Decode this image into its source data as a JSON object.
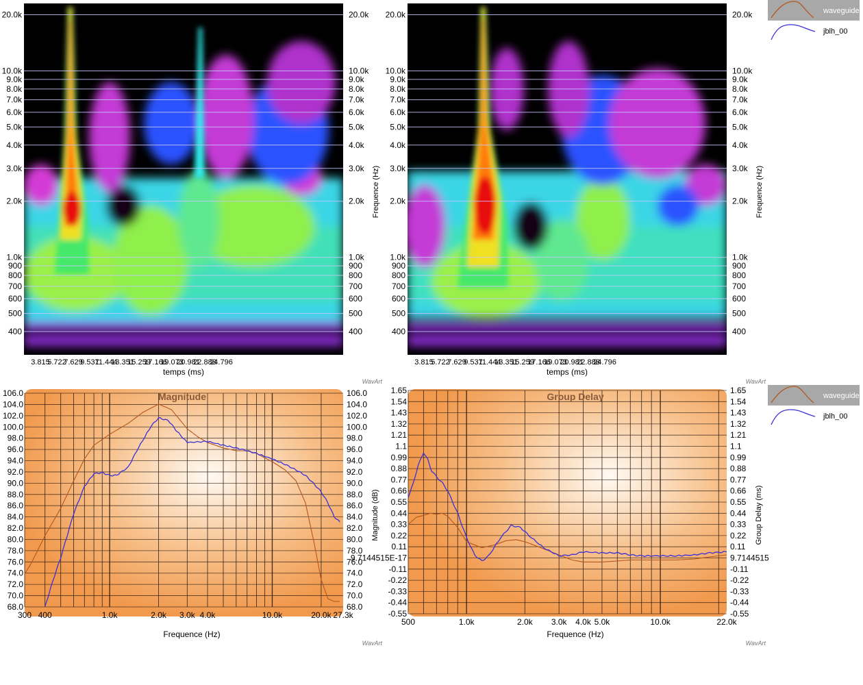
{
  "legend": {
    "items": [
      {
        "name": "waveguide",
        "color": "#b4561e"
      },
      {
        "name": "jblh_00",
        "color": "#3a2fd8"
      }
    ]
  },
  "watermark": "WavArt",
  "wavelet": {
    "freq_ticks": [
      {
        "f": 20000,
        "label": "20.0k"
      },
      {
        "f": 10000,
        "label": "10.0k"
      },
      {
        "f": 9000,
        "label": "9.0k"
      },
      {
        "f": 8000,
        "label": "8.0k"
      },
      {
        "f": 7000,
        "label": "7.0k"
      },
      {
        "f": 6000,
        "label": "6.0k"
      },
      {
        "f": 5000,
        "label": "5.0k"
      },
      {
        "f": 4000,
        "label": "4.0k"
      },
      {
        "f": 3000,
        "label": "3.0k"
      },
      {
        "f": 2000,
        "label": "2.0k"
      },
      {
        "f": 1000,
        "label": "1.0k"
      },
      {
        "f": 900,
        "label": "900"
      },
      {
        "f": 800,
        "label": "800"
      },
      {
        "f": 700,
        "label": "700"
      },
      {
        "f": 600,
        "label": "600"
      },
      {
        "f": 500,
        "label": "500"
      },
      {
        "f": 400,
        "label": "400"
      }
    ],
    "time_ticks": [
      "3.815",
      "5.722",
      "7.629",
      "9.537",
      "11.444",
      "13.351",
      "15.259",
      "17.166",
      "19.073",
      "20.981",
      "22.888",
      "24.796"
    ],
    "xlabel": "temps (ms)",
    "ylabel": "Frequence (Hz)",
    "peaks_ms": [
      5.9,
      9.0
    ]
  },
  "chart_data": [
    {
      "type": "line",
      "title": "Magnitude",
      "xlabel": "Frequence (Hz)",
      "ylabel": "Magnitude (dB)",
      "xscale": "log",
      "xlim": [
        300,
        27300
      ],
      "ylim": [
        67,
        106
      ],
      "x_ticks": [
        {
          "v": 300,
          "label": "300"
        },
        {
          "v": 400,
          "label": "400"
        },
        {
          "v": 1000,
          "label": "1.0k"
        },
        {
          "v": 2000,
          "label": "2.0k"
        },
        {
          "v": 3000,
          "label": "3.0k"
        },
        {
          "v": 4000,
          "label": "4.0k"
        },
        {
          "v": 10000,
          "label": "10.0k"
        },
        {
          "v": 20000,
          "label": "20.0k"
        },
        {
          "v": 27300,
          "label": "27.3k"
        }
      ],
      "y_ticks": [
        "106.0",
        "104.0",
        "102.0",
        "100.0",
        "98.0",
        "96.0",
        "94.0",
        "92.0",
        "90.0",
        "88.0",
        "86.0",
        "84.0",
        "82.0",
        "80.0",
        "78.0",
        "76.0",
        "74.0",
        "72.0",
        "70.0",
        "68.0"
      ],
      "series": [
        {
          "name": "waveguide",
          "x": [
            300,
            330,
            400,
            500,
            600,
            700,
            800,
            1000,
            1300,
            1600,
            2000,
            2400,
            3000,
            3500,
            4000,
            5000,
            6000,
            7000,
            8000,
            10000,
            12000,
            14000,
            16000,
            18000,
            20000,
            22000,
            24000,
            26000
          ],
          "y": [
            73,
            75,
            80,
            85,
            90,
            94,
            96.5,
            98.5,
            100.5,
            102.5,
            104,
            103,
            99.5,
            98,
            97,
            96,
            95.5,
            95.5,
            95,
            93.5,
            92,
            90,
            86,
            79,
            72,
            68.5,
            68,
            68
          ]
        },
        {
          "name": "jblh_00",
          "x": [
            400,
            450,
            500,
            600,
            700,
            800,
            900,
            1000,
            1100,
            1300,
            1500,
            1800,
            2000,
            2300,
            2600,
            3000,
            4000,
            5000,
            6000,
            7000,
            8000,
            10000,
            12000,
            14000,
            16000,
            18000,
            20000,
            22000,
            24000,
            26000
          ],
          "y": [
            67,
            72,
            76,
            84,
            89,
            91.3,
            91.5,
            91,
            91,
            92.5,
            96,
            100,
            101.5,
            101,
            99,
            97,
            97.2,
            96.5,
            96,
            95.5,
            95,
            94,
            93,
            92,
            91,
            89.5,
            88,
            86,
            83.5,
            82.5
          ]
        }
      ]
    },
    {
      "type": "line",
      "title": "Group Delay",
      "xlabel": "Frequence (Hz)",
      "ylabel": "Group Delay (ms)",
      "left_ylabel": "Magnitude (dB)",
      "xscale": "log",
      "xlim": [
        500,
        22000
      ],
      "ylim": [
        -0.55,
        1.65
      ],
      "x_ticks": [
        {
          "v": 500,
          "label": "500"
        },
        {
          "v": 1000,
          "label": "1.0k"
        },
        {
          "v": 2000,
          "label": "2.0k"
        },
        {
          "v": 3000,
          "label": "3.0k"
        },
        {
          "v": 4000,
          "label": "4.0k"
        },
        {
          "v": 5000,
          "label": "5.0k"
        },
        {
          "v": 10000,
          "label": "10.0k"
        },
        {
          "v": 22000,
          "label": "22.0k"
        }
      ],
      "y_ticks": [
        "1.65",
        "1.54",
        "1.43",
        "1.32",
        "1.21",
        "1.1",
        "0.99",
        "0.88",
        "0.77",
        "0.66",
        "0.55",
        "0.44",
        "0.33",
        "0.22",
        "0.11",
        "9.7144515E-17",
        "-0.11",
        "-0.22",
        "-0.33",
        "-0.44",
        "-0.55"
      ],
      "right_zero_label": "9.7144515",
      "series": [
        {
          "name": "waveguide",
          "x": [
            500,
            550,
            600,
            650,
            700,
            750,
            800,
            900,
            1000,
            1200,
            1400,
            1600,
            1800,
            2000,
            2500,
            3000,
            3500,
            4000,
            5000,
            6000,
            7000,
            8000,
            10000,
            12000,
            15000,
            18000,
            22000
          ],
          "y": [
            0.33,
            0.4,
            0.42,
            0.44,
            0.43,
            0.44,
            0.41,
            0.3,
            0.16,
            0.1,
            0.13,
            0.17,
            0.18,
            0.16,
            0.09,
            0.03,
            -0.02,
            -0.04,
            -0.04,
            -0.03,
            -0.02,
            -0.02,
            -0.02,
            -0.02,
            -0.01,
            0.01,
            0.03
          ]
        },
        {
          "name": "jblh_00",
          "x": [
            500,
            530,
            560,
            600,
            630,
            660,
            700,
            750,
            800,
            900,
            1000,
            1100,
            1200,
            1300,
            1500,
            1700,
            1900,
            2100,
            2500,
            3000,
            3500,
            4000,
            5000,
            6000,
            7000,
            8000,
            10000,
            12000,
            15000,
            18000,
            22000
          ],
          "y": [
            0.6,
            0.73,
            0.9,
            1.04,
            0.97,
            0.86,
            0.8,
            0.74,
            0.66,
            0.44,
            0.2,
            0.03,
            -0.03,
            0.02,
            0.2,
            0.32,
            0.3,
            0.22,
            0.1,
            0.02,
            0.03,
            0.06,
            0.05,
            0.05,
            0.03,
            0.02,
            0.02,
            0.02,
            0.03,
            0.05,
            0.06
          ]
        }
      ]
    }
  ]
}
